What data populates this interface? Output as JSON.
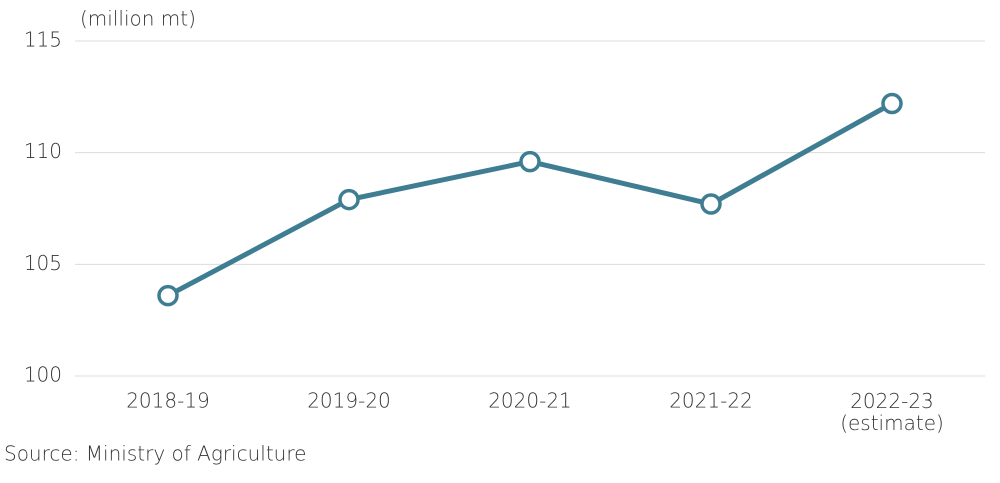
{
  "chart_data": {
    "type": "line",
    "y_label": "(million mt)",
    "source": "Source: Ministry of Agriculture",
    "categories": [
      "2018-19",
      "2019-20",
      "2020-21",
      "2021-22",
      "2022-23\n(estimate)"
    ],
    "values": [
      103.6,
      107.9,
      109.6,
      107.7,
      112.2
    ],
    "color": "#3e7d92",
    "ylim": [
      100,
      115
    ],
    "yticks": [
      100,
      105,
      110,
      115
    ],
    "grid": true
  }
}
